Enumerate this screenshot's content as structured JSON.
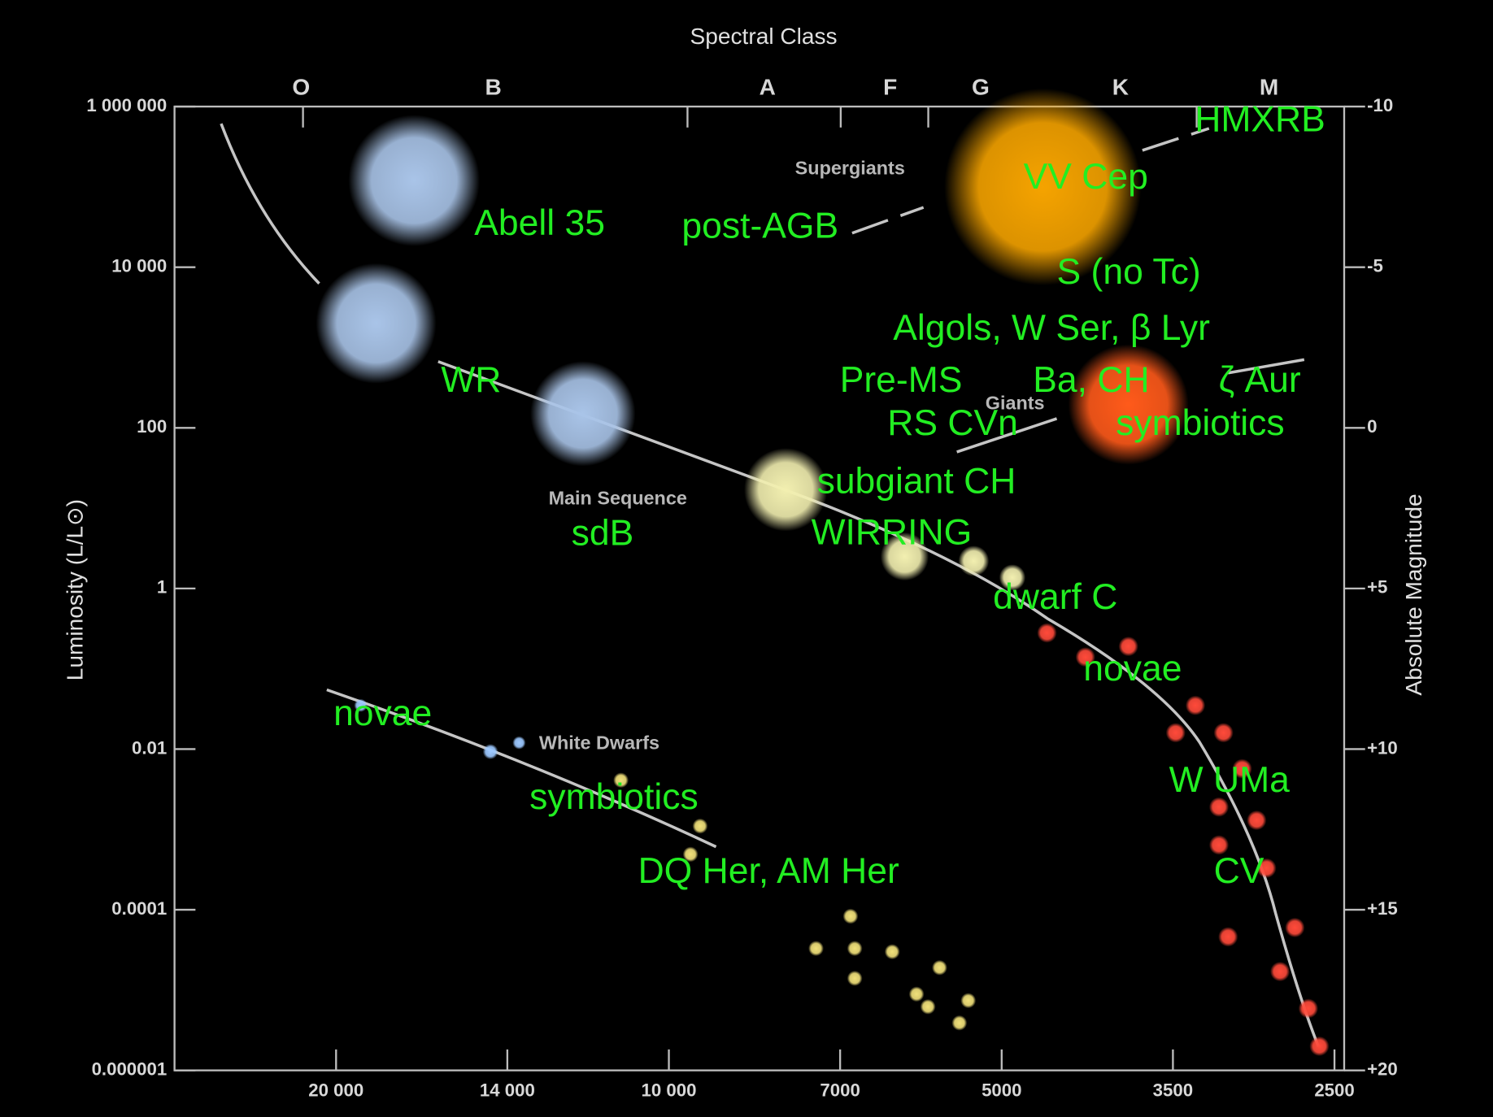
{
  "chart_data": {
    "type": "scatter",
    "x2_label": "Spectral Class",
    "spectral_classes": [
      "O",
      "B",
      "A",
      "F",
      "G",
      "K",
      "M"
    ],
    "ylabel": "Luminosity (L/L⊙)",
    "y2label": "Absolute Magnitude",
    "xscale": "log",
    "yscale": "log",
    "xlim": [
      28000,
      2450
    ],
    "xticks": [
      {
        "value": 20000,
        "label": "20 000"
      },
      {
        "value": 14000,
        "label": "14 000"
      },
      {
        "value": 10000,
        "label": "10 000"
      },
      7000,
      5000,
      3500,
      2500
    ],
    "ylim": [
      1e-06,
      1000000
    ],
    "yticks": [
      1e-06,
      0.0001,
      0.01,
      1,
      100,
      {
        "value": 10000,
        "label": "10 000"
      },
      {
        "value": 1000000,
        "label": "1 000 000"
      }
    ],
    "y2lim": [
      20,
      -10
    ],
    "y2ticks": [
      -10,
      -5,
      0,
      {
        "value": 5,
        "label": "+5"
      },
      {
        "value": 10,
        "label": "+10"
      },
      {
        "value": 15,
        "label": "+15"
      },
      {
        "value": 20,
        "label": "+20"
      }
    ],
    "series": [
      {
        "color": "#a9c4e8",
        "x": [
          17000,
          18400,
          11960
        ],
        "values": [
          120000,
          2000,
          150
        ],
        "sizes": [
          60,
          55,
          48
        ]
      },
      {
        "color": "#f2efb0",
        "x": [
          7840,
          6120,
          5300,
          4890
        ],
        "values": [
          17,
          2.5,
          2.2,
          1.37
        ],
        "sizes": [
          38,
          22,
          14,
          12
        ]
      },
      {
        "color": "#f5a300",
        "x": [
          4590
        ],
        "values": [
          100000
        ],
        "sizes": [
          90
        ]
      },
      {
        "color": "#ff5a1a",
        "x": [
          3840
        ],
        "values": [
          195
        ],
        "sizes": [
          55
        ]
      },
      {
        "color": "#ff4a3a",
        "x": [
          4550,
          4200,
          3840,
          3340,
          3480,
          3150,
          3030,
          3180,
          2940,
          3180,
          2880,
          2715,
          3120,
          2800,
          2640,
          2580
        ],
        "values": [
          0.28,
          0.14,
          0.19,
          0.035,
          0.016,
          0.016,
          0.0057,
          0.0019,
          0.0013,
          0.00064,
          0.00033,
          6e-05,
          4.6e-05,
          1.7e-05,
          5.9e-06,
          2e-06
        ],
        "sizes": [
          9,
          9,
          9,
          9,
          9,
          9,
          9,
          9,
          9,
          9,
          9,
          9,
          9,
          9,
          9,
          9
        ]
      },
      {
        "color": "#9cc8ff",
        "x": [
          19000,
          14500,
          13660
        ],
        "values": [
          0.035,
          0.0093,
          0.012
        ],
        "sizes": [
          6,
          7,
          6
        ]
      },
      {
        "color": "#f0e07a",
        "x": [
          11050,
          9370,
          9560,
          6850,
          7360,
          6790,
          6280,
          6790,
          5690,
          5970,
          5830,
          5360,
          5460
        ],
        "values": [
          0.0041,
          0.0011,
          0.00049,
          8.3e-05,
          3.3e-05,
          3.3e-05,
          3e-05,
          1.4e-05,
          1.9e-05,
          8.9e-06,
          6.2e-06,
          7.4e-06,
          3.9e-06
        ],
        "sizes": [
          7,
          7,
          7,
          7,
          7,
          7,
          7,
          7,
          7,
          7,
          7,
          7,
          7
        ]
      }
    ],
    "region_labels": [
      "Supergiants",
      "Giants",
      "Main Sequence",
      "White Dwarfs"
    ],
    "annotations": [
      "Abell 35",
      "post-AGB",
      "VV Cep",
      "HMXRB",
      "S (no Tc)",
      "Algols, W Ser, β Lyr",
      "Pre-MS",
      "Ba, CH",
      "ζ Aur",
      "WR",
      "RS CVn",
      "symbiotics",
      "subgiant CH",
      "sdB",
      "WIRRING",
      "dwarf C",
      "novae",
      "novae",
      "symbiotics",
      "W UMa",
      "DQ Her, AM Her",
      "CV"
    ]
  }
}
